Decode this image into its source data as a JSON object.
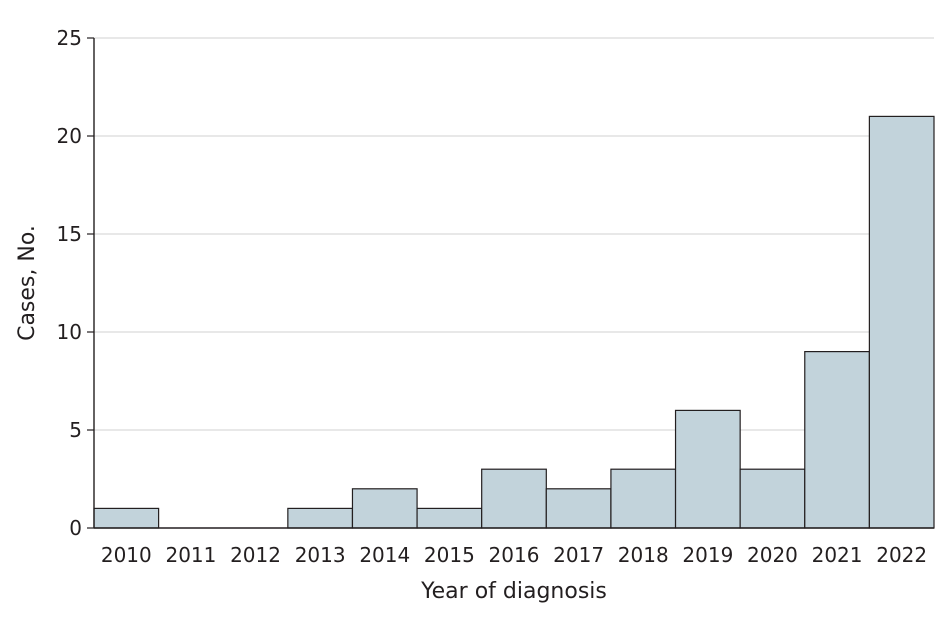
{
  "chart_data": {
    "type": "bar",
    "title": "",
    "xlabel": "Year of diagnosis",
    "ylabel": "Cases, No.",
    "ylim": [
      0,
      25
    ],
    "yticks": [
      "0",
      "5",
      "10",
      "15",
      "20",
      "25"
    ],
    "grid": "horizontal",
    "categories": [
      "2010",
      "2011",
      "2012",
      "2013",
      "2014",
      "2015",
      "2016",
      "2017",
      "2018",
      "2019",
      "2020",
      "2021",
      "2022"
    ],
    "values": [
      1,
      0,
      0,
      1,
      2,
      1,
      3,
      2,
      3,
      6,
      3,
      9,
      21
    ],
    "colors": {
      "bar_fill": "#c2d3db",
      "bar_stroke": "#231f20",
      "grid": "#d9d9d9",
      "axis": "#231f20"
    }
  }
}
